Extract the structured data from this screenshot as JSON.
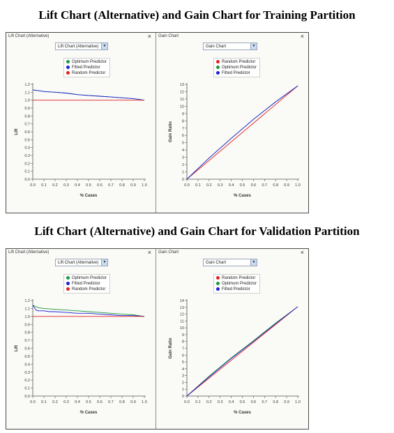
{
  "sections": [
    {
      "title": "Lift Chart (Alternative) and Gain Chart for Training Partition",
      "lift_panel": {
        "title": "Lift Chart (Alternative)",
        "dropdown": "Lift Chart (Alternative)",
        "close": "×",
        "legend": [
          {
            "label": "Optimum Predictor",
            "color": "#1a9a3a"
          },
          {
            "label": "Fitted Predictor",
            "color": "#1f1fd6"
          },
          {
            "label": "Random Predictor",
            "color": "#e02020"
          }
        ]
      },
      "gain_panel": {
        "title": "Gain Chart",
        "dropdown": "Gain Chart",
        "close": "×",
        "legend": [
          {
            "label": "Random Predictor",
            "color": "#e02020"
          },
          {
            "label": "Optimum Predictor",
            "color": "#1a9a3a"
          },
          {
            "label": "Fitted Predictor",
            "color": "#1f1fd6"
          }
        ]
      }
    },
    {
      "title": "Lift Chart (Alternative) and Gain Chart for Validation Partition",
      "lift_panel": {
        "title": "Lift Chart (Alternative)",
        "dropdown": "Lift Chart (Alternative)",
        "close": "×",
        "legend": [
          {
            "label": "Optimum Predictor",
            "color": "#1a9a3a"
          },
          {
            "label": "Fitted Predictor",
            "color": "#1f1fd6"
          },
          {
            "label": "Random Predictor",
            "color": "#e02020"
          }
        ]
      },
      "gain_panel": {
        "title": "Gain Chart",
        "dropdown": "Gain Chart",
        "close": "×",
        "legend": [
          {
            "label": "Random Predictor",
            "color": "#e02020"
          },
          {
            "label": "Optimum Predictor",
            "color": "#1a9a3a"
          },
          {
            "label": "Fitted Predictor",
            "color": "#1f1fd6"
          }
        ]
      }
    }
  ],
  "chart_data": [
    {
      "type": "line",
      "partition": "Training",
      "xlabel": "% Cases",
      "ylabel": "Lift",
      "xlim": [
        0,
        1
      ],
      "ylim": [
        0,
        1.2
      ],
      "xticks": [
        "0.0",
        "0.1",
        "0.2",
        "0.3",
        "0.4",
        "0.5",
        "0.6",
        "0.7",
        "0.8",
        "0.9",
        "1.0"
      ],
      "yticks": [
        "0.0",
        "0.1",
        "0.2",
        "0.3",
        "0.4",
        "0.5",
        "0.6",
        "0.7",
        "0.8",
        "0.9",
        "1.0",
        "1.1",
        "1.2"
      ],
      "series": [
        {
          "name": "Optimum Predictor",
          "color": "#1a9a3a",
          "x": [
            0,
            0.1,
            0.2,
            0.3,
            0.4,
            0.5,
            0.6,
            0.7,
            0.8,
            0.9,
            1.0
          ],
          "y": [
            1.13,
            1.11,
            1.1,
            1.09,
            1.07,
            1.06,
            1.05,
            1.04,
            1.03,
            1.02,
            1.0
          ]
        },
        {
          "name": "Fitted Predictor",
          "color": "#1f1fd6",
          "x": [
            0,
            0.1,
            0.2,
            0.3,
            0.4,
            0.5,
            0.6,
            0.7,
            0.8,
            0.9,
            1.0
          ],
          "y": [
            1.13,
            1.11,
            1.1,
            1.09,
            1.07,
            1.06,
            1.05,
            1.04,
            1.03,
            1.02,
            1.0
          ]
        },
        {
          "name": "Random Predictor",
          "color": "#e02020",
          "x": [
            0,
            1.0
          ],
          "y": [
            1.0,
            1.0
          ]
        }
      ]
    },
    {
      "type": "line",
      "partition": "Training",
      "xlabel": "% Cases",
      "ylabel": "Gain Ratio",
      "xlim": [
        0,
        1
      ],
      "ylim": [
        0,
        13
      ],
      "xticks": [
        "0.0",
        "0.1",
        "0.2",
        "0.3",
        "0.4",
        "0.5",
        "0.6",
        "0.7",
        "0.8",
        "0.9",
        "1.0"
      ],
      "yticks": [
        "0",
        "1",
        "2",
        "3",
        "4",
        "5",
        "6",
        "7",
        "8",
        "9",
        "10",
        "11",
        "12",
        "13"
      ],
      "series": [
        {
          "name": "Random Predictor",
          "color": "#e02020",
          "x": [
            0,
            1.0
          ],
          "y": [
            0,
            12.8
          ]
        },
        {
          "name": "Optimum Predictor",
          "color": "#1a9a3a",
          "x": [
            0,
            0.2,
            0.4,
            0.6,
            0.8,
            1.0
          ],
          "y": [
            0,
            2.9,
            5.6,
            8.2,
            10.6,
            12.8
          ]
        },
        {
          "name": "Fitted Predictor",
          "color": "#1f1fd6",
          "x": [
            0,
            0.2,
            0.4,
            0.6,
            0.8,
            1.0
          ],
          "y": [
            0,
            2.9,
            5.6,
            8.2,
            10.6,
            12.8
          ]
        }
      ]
    },
    {
      "type": "line",
      "partition": "Validation",
      "xlabel": "% Cases",
      "ylabel": "Lift",
      "xlim": [
        0,
        1
      ],
      "ylim": [
        0,
        1.2
      ],
      "xticks": [
        "0.0",
        "0.1",
        "0.2",
        "0.3",
        "0.4",
        "0.5",
        "0.6",
        "0.7",
        "0.8",
        "0.9",
        "1.0"
      ],
      "yticks": [
        "0.0",
        "0.1",
        "0.2",
        "0.3",
        "0.4",
        "0.5",
        "0.6",
        "0.7",
        "0.8",
        "0.9",
        "1.0",
        "1.1",
        "1.2"
      ],
      "series": [
        {
          "name": "Optimum Predictor",
          "color": "#1a9a3a",
          "x": [
            0,
            0.05,
            0.1,
            0.2,
            0.3,
            0.4,
            0.5,
            0.6,
            0.7,
            0.8,
            0.9,
            1.0
          ],
          "y": [
            1.14,
            1.11,
            1.1,
            1.09,
            1.08,
            1.07,
            1.06,
            1.05,
            1.04,
            1.03,
            1.02,
            1.0
          ]
        },
        {
          "name": "Fitted Predictor",
          "color": "#1f1fd6",
          "x": [
            0,
            0.03,
            0.05,
            0.1,
            0.15,
            0.2,
            0.3,
            0.4,
            0.5,
            0.6,
            0.7,
            0.8,
            0.9,
            1.0
          ],
          "y": [
            1.14,
            1.08,
            1.07,
            1.07,
            1.06,
            1.06,
            1.05,
            1.04,
            1.04,
            1.03,
            1.02,
            1.01,
            1.01,
            1.0
          ]
        },
        {
          "name": "Random Predictor",
          "color": "#e02020",
          "x": [
            0,
            1.0
          ],
          "y": [
            1.0,
            1.0
          ]
        }
      ]
    },
    {
      "type": "line",
      "partition": "Validation",
      "xlabel": "% Cases",
      "ylabel": "Gain Ratio",
      "xlim": [
        0,
        1
      ],
      "ylim": [
        0,
        14
      ],
      "xticks": [
        "0.0",
        "0.1",
        "0.2",
        "0.3",
        "0.4",
        "0.5",
        "0.6",
        "0.7",
        "0.8",
        "0.9",
        "1.0"
      ],
      "yticks": [
        "0",
        "1",
        "2",
        "3",
        "4",
        "5",
        "6",
        "7",
        "8",
        "9",
        "10",
        "11",
        "12",
        "13",
        "14"
      ],
      "series": [
        {
          "name": "Random Predictor",
          "color": "#e02020",
          "x": [
            0,
            1.0
          ],
          "y": [
            0,
            13.1
          ]
        },
        {
          "name": "Optimum Predictor",
          "color": "#1a9a3a",
          "x": [
            0,
            0.2,
            0.4,
            0.6,
            0.8,
            1.0
          ],
          "y": [
            0,
            2.9,
            5.6,
            8.1,
            10.7,
            13.1
          ]
        },
        {
          "name": "Fitted Predictor",
          "color": "#1f1fd6",
          "x": [
            0,
            0.2,
            0.4,
            0.6,
            0.8,
            1.0
          ],
          "y": [
            0,
            2.8,
            5.5,
            8.0,
            10.6,
            13.1
          ]
        }
      ]
    }
  ]
}
